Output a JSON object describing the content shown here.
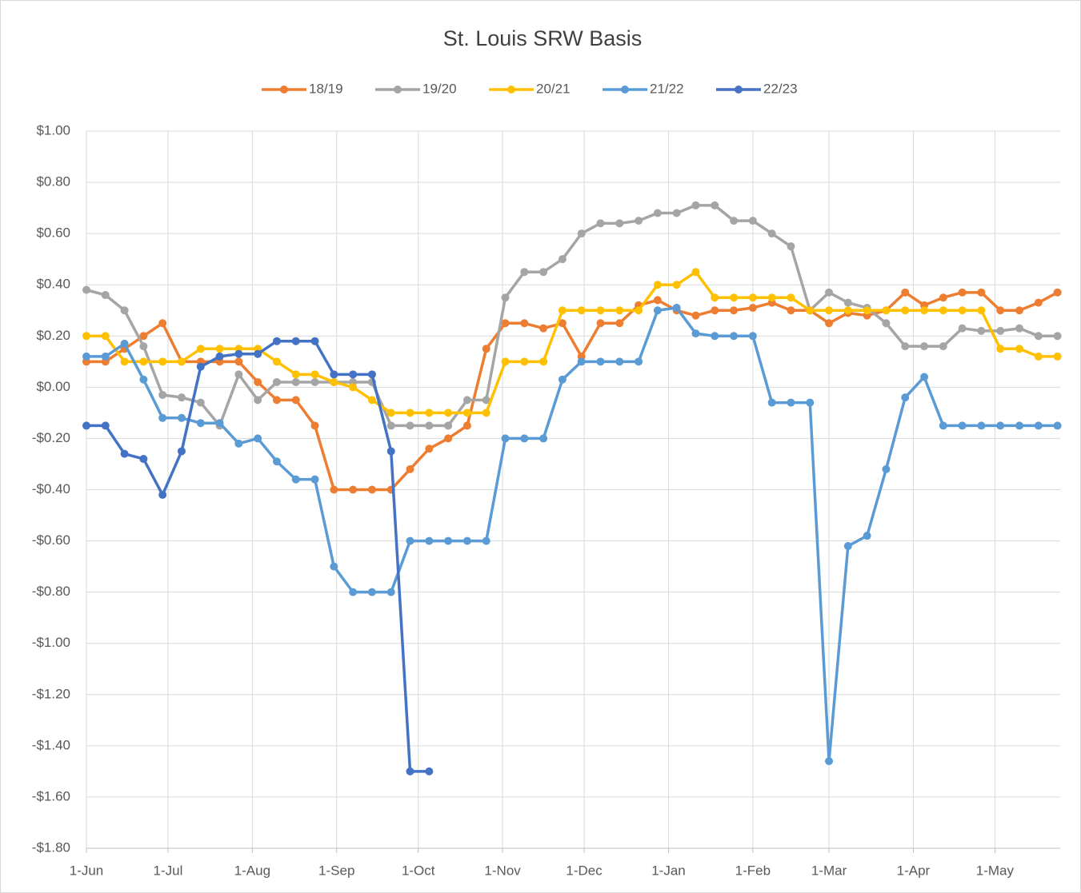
{
  "chart_data": {
    "type": "line",
    "title": "St. Louis SRW Basis",
    "x": [
      0,
      7,
      14,
      21,
      28,
      35,
      42,
      49,
      56,
      63,
      70,
      77,
      84,
      91,
      98,
      105,
      112,
      119,
      126,
      133,
      140,
      147,
      154,
      161,
      168,
      175,
      182,
      189,
      196,
      203,
      210,
      217,
      224,
      231,
      238,
      245,
      252,
      259,
      266,
      273,
      280,
      287,
      294,
      301,
      308,
      315,
      322,
      329,
      336,
      343,
      350,
      357
    ],
    "xlim": [
      0,
      358
    ],
    "xticks": [
      {
        "value": 0,
        "label": "1-Jun"
      },
      {
        "value": 30,
        "label": "1-Jul"
      },
      {
        "value": 61,
        "label": "1-Aug"
      },
      {
        "value": 92,
        "label": "1-Sep"
      },
      {
        "value": 122,
        "label": "1-Oct"
      },
      {
        "value": 153,
        "label": "1-Nov"
      },
      {
        "value": 183,
        "label": "1-Dec"
      },
      {
        "value": 214,
        "label": "1-Jan"
      },
      {
        "value": 245,
        "label": "1-Feb"
      },
      {
        "value": 273,
        "label": "1-Mar"
      },
      {
        "value": 304,
        "label": "1-Apr"
      },
      {
        "value": 334,
        "label": "1-May"
      }
    ],
    "ylim": [
      -1.8,
      1.0
    ],
    "yticks": [
      {
        "value": 1.0,
        "label": "$1.00"
      },
      {
        "value": 0.8,
        "label": "$0.80"
      },
      {
        "value": 0.6,
        "label": "$0.60"
      },
      {
        "value": 0.4,
        "label": "$0.40"
      },
      {
        "value": 0.2,
        "label": "$0.20"
      },
      {
        "value": 0,
        "label": "$0.00"
      },
      {
        "value": -0.2,
        "label": "-$0.20"
      },
      {
        "value": -0.4,
        "label": "-$0.40"
      },
      {
        "value": -0.6,
        "label": "-$0.60"
      },
      {
        "value": -0.8,
        "label": "-$0.80"
      },
      {
        "value": -1.0,
        "label": "-$1.00"
      },
      {
        "value": -1.2,
        "label": "-$1.20"
      },
      {
        "value": -1.4,
        "label": "-$1.40"
      },
      {
        "value": -1.6,
        "label": "-$1.60"
      },
      {
        "value": -1.8,
        "label": "-$1.80"
      }
    ],
    "grid": true,
    "legend": "top",
    "series": [
      {
        "name": "18/19",
        "color": "#ED7D31",
        "values": [
          0.1,
          0.1,
          0.15,
          0.2,
          0.25,
          0.1,
          0.1,
          0.1,
          0.1,
          0.02,
          -0.05,
          -0.05,
          -0.15,
          -0.4,
          -0.4,
          -0.4,
          -0.4,
          -0.32,
          -0.24,
          -0.2,
          -0.15,
          0.15,
          0.25,
          0.25,
          0.23,
          0.25,
          0.12,
          0.25,
          0.25,
          0.32,
          0.34,
          0.3,
          0.28,
          0.3,
          0.3,
          0.31,
          0.33,
          0.3,
          0.3,
          0.25,
          0.29,
          0.28,
          0.3,
          0.37,
          0.32,
          0.35,
          0.37,
          0.37,
          0.3,
          0.3,
          0.33,
          0.37
        ]
      },
      {
        "name": "19/20",
        "color": "#A5A5A5",
        "values": [
          0.38,
          0.36,
          0.3,
          0.16,
          -0.03,
          -0.04,
          -0.06,
          -0.15,
          0.05,
          -0.05,
          0.02,
          0.02,
          0.02,
          0.02,
          0.02,
          0.02,
          -0.15,
          -0.15,
          -0.15,
          -0.15,
          -0.05,
          -0.05,
          0.35,
          0.45,
          0.45,
          0.5,
          0.6,
          0.64,
          0.64,
          0.65,
          0.68,
          0.68,
          0.71,
          0.71,
          0.65,
          0.65,
          0.6,
          0.55,
          0.3,
          0.37,
          0.33,
          0.31,
          0.25,
          0.16,
          0.16,
          0.16,
          0.23,
          0.22,
          0.22,
          0.23,
          0.2,
          0.2
        ]
      },
      {
        "name": "20/21",
        "color": "#FFC000",
        "values": [
          0.2,
          0.2,
          0.1,
          0.1,
          0.1,
          0.1,
          0.15,
          0.15,
          0.15,
          0.15,
          0.1,
          0.05,
          0.05,
          0.02,
          0.0,
          -0.05,
          -0.1,
          -0.1,
          -0.1,
          -0.1,
          -0.1,
          -0.1,
          0.1,
          0.1,
          0.1,
          0.3,
          0.3,
          0.3,
          0.3,
          0.3,
          0.4,
          0.4,
          0.45,
          0.35,
          0.35,
          0.35,
          0.35,
          0.35,
          0.3,
          0.3,
          0.3,
          0.3,
          0.3,
          0.3,
          0.3,
          0.3,
          0.3,
          0.3,
          0.15,
          0.15,
          0.12,
          0.12
        ]
      },
      {
        "name": "21/22",
        "color": "#5B9BD5",
        "values": [
          0.12,
          0.12,
          0.17,
          0.03,
          -0.12,
          -0.12,
          -0.14,
          -0.14,
          -0.22,
          -0.2,
          -0.29,
          -0.36,
          -0.36,
          -0.7,
          -0.8,
          -0.8,
          -0.8,
          -0.6,
          -0.6,
          -0.6,
          -0.6,
          -0.6,
          -0.2,
          -0.2,
          -0.2,
          0.03,
          0.1,
          0.1,
          0.1,
          0.1,
          0.3,
          0.31,
          0.21,
          0.2,
          0.2,
          0.2,
          -0.06,
          -0.06,
          -0.06,
          -1.46,
          -0.62,
          -0.58,
          -0.32,
          -0.04,
          0.04,
          -0.15,
          -0.15,
          -0.15,
          -0.15,
          -0.15,
          -0.15,
          -0.15
        ]
      },
      {
        "name": "22/23",
        "color": "#4472C4",
        "values": [
          -0.15,
          -0.15,
          -0.26,
          -0.28,
          -0.42,
          -0.25,
          0.08,
          0.12,
          0.13,
          0.13,
          0.18,
          0.18,
          0.18,
          0.05,
          0.05,
          0.05,
          -0.25,
          -1.5,
          -1.5,
          null,
          null,
          null,
          null,
          null,
          null,
          null,
          null,
          null,
          null,
          null,
          null,
          null,
          null,
          null,
          null,
          null,
          null,
          null,
          null,
          null,
          null,
          null,
          null,
          null,
          null,
          null,
          null,
          null,
          null,
          null,
          null,
          null
        ]
      }
    ]
  }
}
